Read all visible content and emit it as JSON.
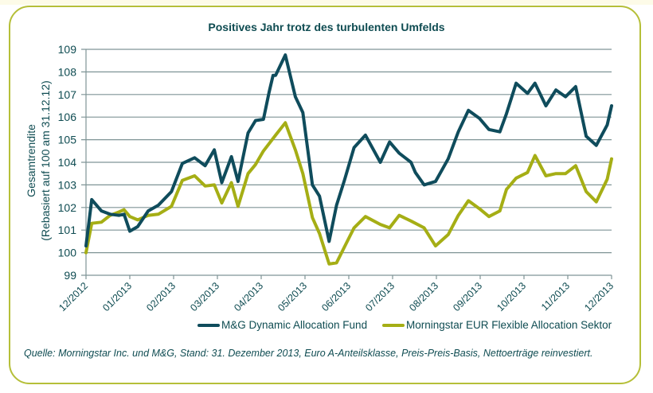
{
  "chart_data": {
    "type": "line",
    "title": "Positives Jahr trotz des turbulenten Umfelds",
    "ylabel_lines": [
      "Gesamtrendite",
      "(Rebasiert auf 100 am 31.12.12)"
    ],
    "xlabel": "",
    "ylim": [
      99,
      109
    ],
    "yticks": [
      "99",
      "100",
      "101",
      "102",
      "103",
      "104",
      "105",
      "106",
      "107",
      "108",
      "109"
    ],
    "xticks": [
      "12/2012",
      "01/2013",
      "02/2013",
      "03/2013",
      "04/2013",
      "05/2013",
      "06/2013",
      "07/2013",
      "08/2013",
      "09/2013",
      "10/2013",
      "11/2013",
      "12/2013"
    ],
    "grid": true,
    "legend_position": "bottom",
    "x_unit": "months since 12/2012",
    "series": [
      {
        "name": "M&G Dynamic Allocation Fund",
        "color": "#0f4c5c",
        "x": [
          0,
          0.13,
          0.35,
          0.55,
          0.75,
          0.87,
          1.0,
          1.18,
          1.42,
          1.65,
          1.95,
          2.2,
          2.48,
          2.72,
          2.93,
          3.1,
          3.32,
          3.47,
          3.7,
          3.87,
          4.05,
          4.18,
          4.27,
          4.33,
          4.55,
          4.78,
          4.95,
          5.17,
          5.33,
          5.55,
          5.72,
          5.9,
          6.12,
          6.38,
          6.72,
          6.93,
          7.15,
          7.42,
          7.52,
          7.72,
          7.98,
          8.27,
          8.5,
          8.73,
          8.98,
          9.2,
          9.45,
          9.6,
          9.82,
          10.08,
          10.25,
          10.5,
          10.73,
          10.95,
          11.18,
          11.42,
          11.65,
          11.9,
          12.0
        ],
        "values": [
          100.3,
          102.35,
          101.85,
          101.7,
          101.65,
          101.7,
          100.95,
          101.15,
          101.85,
          102.1,
          102.7,
          103.95,
          104.2,
          103.85,
          104.55,
          103.1,
          104.25,
          103.15,
          105.3,
          105.85,
          105.9,
          107.1,
          107.85,
          107.85,
          108.75,
          106.9,
          106.2,
          103.0,
          102.5,
          100.5,
          102.1,
          103.2,
          104.65,
          105.2,
          104.0,
          104.9,
          104.4,
          104.0,
          103.55,
          103.0,
          103.15,
          104.15,
          105.35,
          106.3,
          105.95,
          105.45,
          105.35,
          106.15,
          107.5,
          107.05,
          107.5,
          106.5,
          107.2,
          106.9,
          107.35,
          105.15,
          104.75,
          105.65,
          106.5
        ]
      },
      {
        "name": "Morningstar EUR Flexible Allocation Sektor",
        "color": "#a5ae15",
        "x": [
          0,
          0.13,
          0.35,
          0.55,
          0.75,
          0.87,
          1.0,
          1.18,
          1.42,
          1.65,
          1.95,
          2.2,
          2.48,
          2.72,
          2.93,
          3.1,
          3.32,
          3.47,
          3.7,
          3.87,
          4.05,
          4.33,
          4.55,
          4.78,
          4.95,
          5.17,
          5.33,
          5.55,
          5.72,
          5.9,
          6.12,
          6.38,
          6.72,
          6.93,
          7.15,
          7.42,
          7.72,
          7.98,
          8.27,
          8.5,
          8.73,
          8.98,
          9.2,
          9.45,
          9.6,
          9.82,
          10.08,
          10.25,
          10.5,
          10.73,
          10.95,
          11.18,
          11.42,
          11.65,
          11.9,
          12.0
        ],
        "values": [
          100.0,
          101.3,
          101.35,
          101.65,
          101.8,
          101.9,
          101.6,
          101.45,
          101.65,
          101.7,
          102.05,
          103.2,
          103.4,
          102.95,
          103.0,
          102.2,
          103.1,
          102.05,
          103.5,
          103.9,
          104.5,
          105.2,
          105.75,
          104.55,
          103.5,
          101.55,
          100.85,
          99.5,
          99.55,
          100.25,
          101.1,
          101.6,
          101.25,
          101.1,
          101.65,
          101.4,
          101.1,
          100.3,
          100.8,
          101.65,
          102.3,
          101.95,
          101.6,
          101.85,
          102.8,
          103.3,
          103.55,
          104.3,
          103.4,
          103.5,
          103.5,
          103.85,
          102.7,
          102.25,
          103.25,
          104.15
        ]
      }
    ]
  },
  "source_note": "Quelle: Morningstar Inc. und M&G, Stand: 31. Dezember 2013, Euro A-Anteilsklasse, Preis-Preis-Basis, Nettoerträge reinvestiert."
}
